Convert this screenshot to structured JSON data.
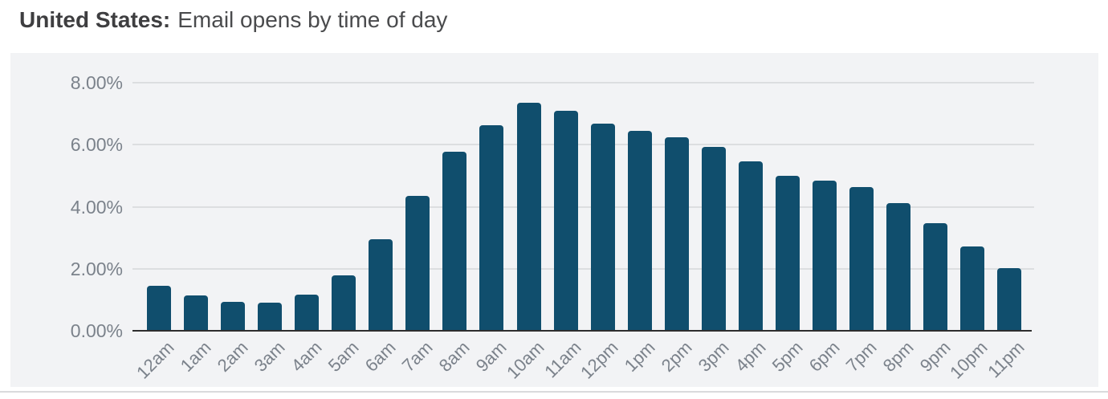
{
  "header": {
    "title_bold": "United States:",
    "title_rest": "Email opens by time of day"
  },
  "chart_data": {
    "type": "bar",
    "title": "United States: Email opens by time of day",
    "categories": [
      "12am",
      "1am",
      "2am",
      "3am",
      "4am",
      "5am",
      "6am",
      "7am",
      "8am",
      "9am",
      "10am",
      "11am",
      "12pm",
      "1pm",
      "2pm",
      "3pm",
      "4pm",
      "5pm",
      "6pm",
      "7pm",
      "8pm",
      "9pm",
      "10pm",
      "11pm"
    ],
    "values": [
      1.46,
      1.13,
      0.92,
      0.9,
      1.17,
      1.79,
      2.96,
      4.35,
      5.77,
      6.63,
      7.35,
      7.1,
      6.68,
      6.45,
      6.24,
      5.92,
      5.45,
      5.0,
      4.85,
      4.63,
      4.12,
      3.47,
      2.72,
      2.03
    ],
    "unit": "%",
    "xlabel": "",
    "ylabel": "",
    "ylim": [
      0,
      8
    ],
    "ytick_values": [
      0,
      2,
      4,
      6,
      8
    ],
    "ytick_labels": [
      "0.00%",
      "2.00%",
      "4.00%",
      "6.00%",
      "8.00%"
    ],
    "grid": true,
    "legend": false,
    "bar_color": "#104e6d"
  },
  "colors": {
    "page_bg": "#ffffff",
    "panel_bg": "#f2f3f5",
    "grid": "#dcdee0",
    "axis": "#2e2e2e",
    "tick_text": "#7b828b",
    "title_bold": "#3e3e40",
    "title_rest": "#4a4b4d",
    "bar": "#104e6d",
    "divider": "#d9dadc"
  }
}
